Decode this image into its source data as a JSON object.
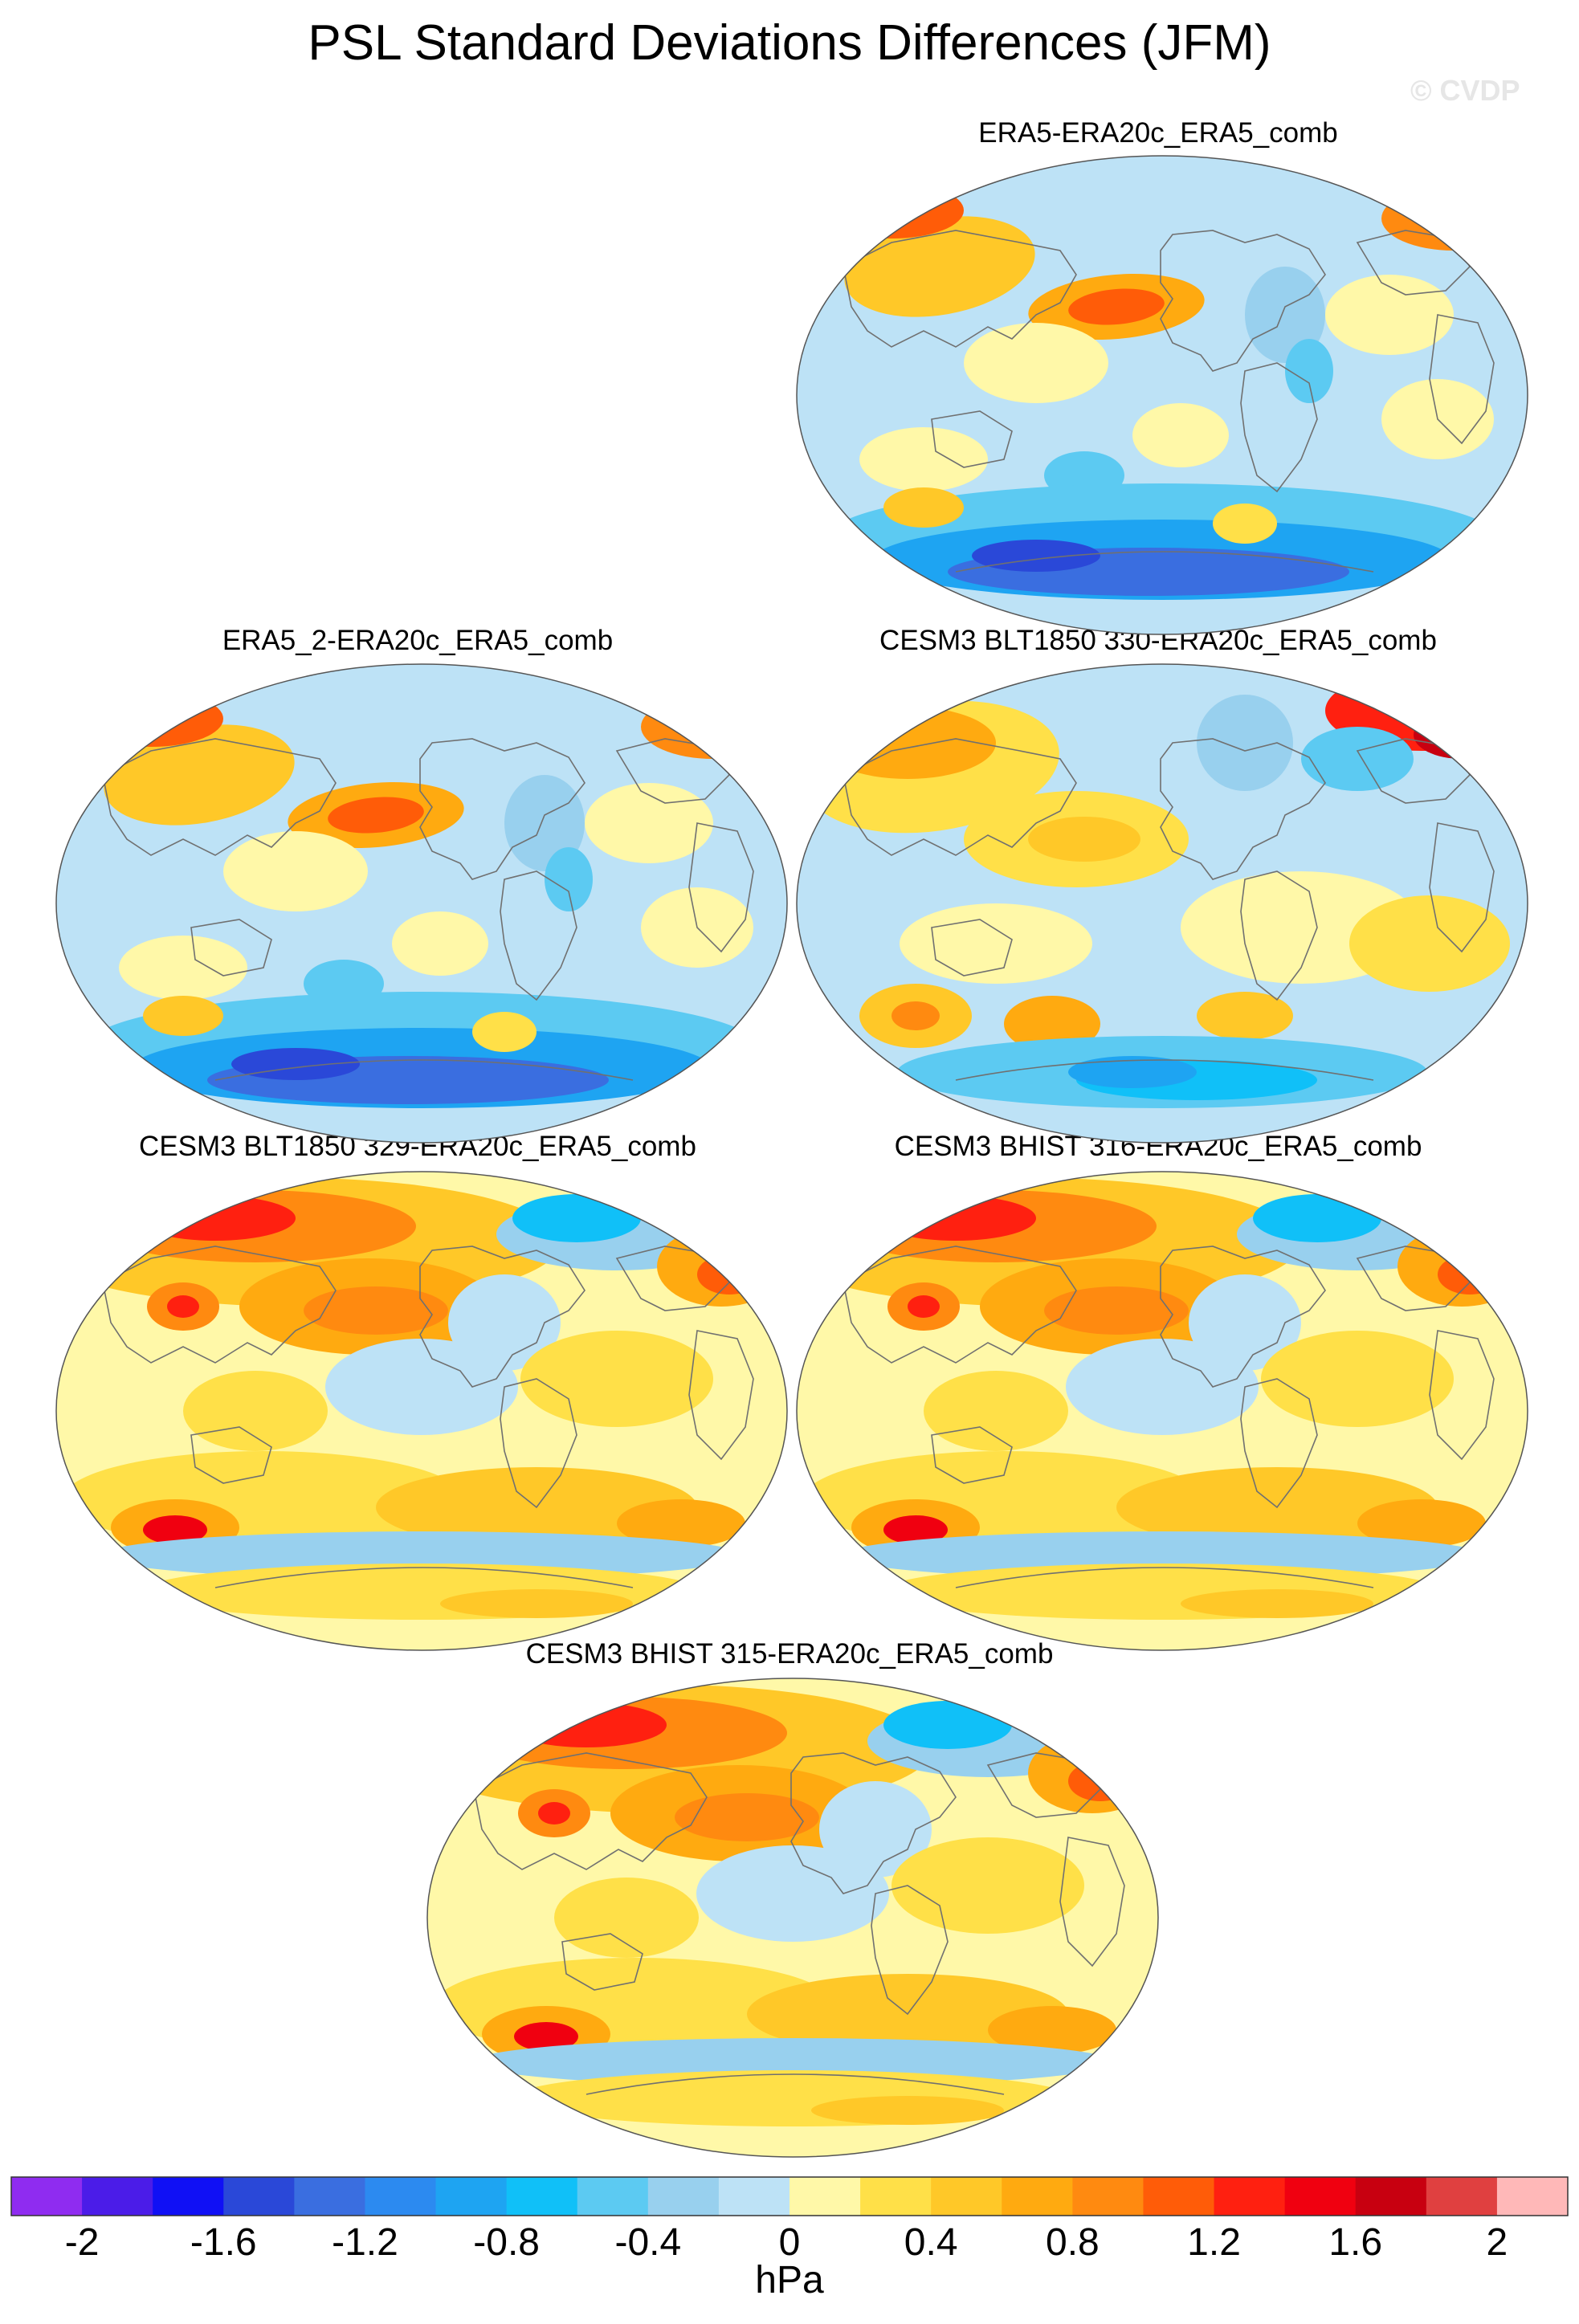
{
  "title": "PSL Standard Deviations Differences (JFM)",
  "watermark": "© CVDP",
  "panels": [
    {
      "id": "p1",
      "title": "ERA5-ERA20c_ERA5_comb",
      "pattern": "neg_south"
    },
    {
      "id": "p2",
      "title": "ERA5_2-ERA20c_ERA5_comb",
      "pattern": "neg_south"
    },
    {
      "id": "p3",
      "title": "CESM3 BLT1850 330-ERA20c_ERA5_comb",
      "pattern": "mixed"
    },
    {
      "id": "p4",
      "title": "CESM3 BLT1850 329-ERA20c_ERA5_comb",
      "pattern": "pos"
    },
    {
      "id": "p5",
      "title": "CESM3 BHIST 316-ERA20c_ERA5_comb",
      "pattern": "pos"
    },
    {
      "id": "p6",
      "title": "CESM3 BHIST 315-ERA20c_ERA5_comb",
      "pattern": "pos"
    }
  ],
  "colorbar": {
    "units": "hPa",
    "colors": [
      "#8f2cf0",
      "#4b1ce8",
      "#1010f5",
      "#2a48d8",
      "#3a6ee0",
      "#2c8af0",
      "#1ea4f2",
      "#10c0f8",
      "#5ccaf2",
      "#98d0ee",
      "#bde2f6",
      "#fff8a8",
      "#ffe048",
      "#ffc828",
      "#ffaa10",
      "#ff8a10",
      "#ff5c08",
      "#ff2010",
      "#f00010",
      "#c80010",
      "#e04040",
      "#ffb8b8"
    ],
    "labels": [
      "-2",
      "-1.6",
      "-1.2",
      "-0.8",
      "-0.4",
      "0",
      "0.4",
      "0.8",
      "1.2",
      "1.6",
      "2"
    ]
  }
}
